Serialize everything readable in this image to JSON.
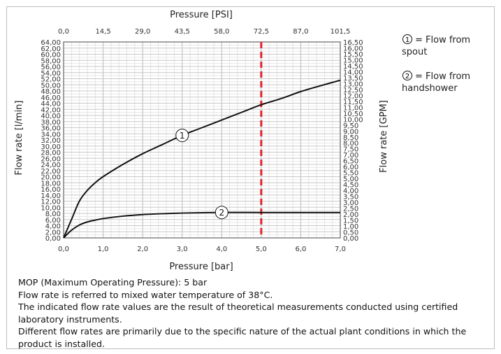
{
  "chart_data": {
    "type": "line",
    "title": "",
    "xlabel": "Pressure [bar]",
    "x2label": "Pressure [PSI]",
    "ylabel": "Flow rate [l/min]",
    "y2label": "Flow rate [GPM]",
    "xlim": [
      0,
      7
    ],
    "ylim": [
      0,
      64
    ],
    "y2lim": [
      0,
      16.5
    ],
    "x_ticks": [
      "0,0",
      "1,0",
      "2,0",
      "3,0",
      "4,0",
      "5,0",
      "6,0",
      "7,0"
    ],
    "x2_ticks": [
      "0,0",
      "14,5",
      "29,0",
      "43,5",
      "58,0",
      "72,5",
      "87,0",
      "101,5"
    ],
    "y_ticks": [
      "0,00",
      "2,00",
      "4,00",
      "6,00",
      "8,00",
      "10,00",
      "12,00",
      "14,00",
      "16,00",
      "18,00",
      "20,00",
      "22,00",
      "24,00",
      "26,00",
      "28,00",
      "30,00",
      "32,00",
      "34,00",
      "36,00",
      "38,00",
      "40,00",
      "42,00",
      "44,00",
      "46,00",
      "48,00",
      "50,00",
      "52,00",
      "54,00",
      "56,00",
      "58,00",
      "60,00",
      "62,00",
      "64,00"
    ],
    "y2_ticks": [
      "0,00",
      "0,50",
      "1,00",
      "1,50",
      "2,00",
      "2,50",
      "3,00",
      "3,50",
      "4,00",
      "4,50",
      "5,00",
      "5,50",
      "6,00",
      "6,50",
      "7,00",
      "7,50",
      "8,00",
      "8,50",
      "9,00",
      "9,50",
      "10,00",
      "10,50",
      "11,00",
      "11,50",
      "12,00",
      "12,50",
      "13,00",
      "13,50",
      "14,00",
      "14,50",
      "15,00",
      "15,50",
      "16,00",
      "16,50"
    ],
    "grid": true,
    "reference_line": {
      "x": 5,
      "color": "#e0242a",
      "style": "dashed"
    },
    "series": [
      {
        "label": "1",
        "color": "#111111",
        "x": [
          0,
          0.2,
          0.4,
          0.6,
          0.8,
          1.0,
          1.5,
          2.0,
          2.5,
          3.0,
          3.5,
          4.0,
          4.5,
          5.0,
          5.5,
          6.0,
          6.5,
          7.0
        ],
        "y": [
          0,
          6,
          12,
          15.5,
          18,
          20,
          24,
          27.5,
          30.5,
          33.5,
          36,
          38.5,
          41,
          43.5,
          45.5,
          47.8,
          49.7,
          51.5
        ],
        "marker_at_x": 3.0
      },
      {
        "label": "2",
        "color": "#111111",
        "x": [
          0,
          0.2,
          0.4,
          0.6,
          0.8,
          1.0,
          1.5,
          2.0,
          2.5,
          3.0,
          4.0,
          5.0,
          6.0,
          7.0
        ],
        "y": [
          0,
          2.5,
          4.2,
          5.2,
          5.8,
          6.3,
          7.1,
          7.6,
          7.9,
          8.1,
          8.3,
          8.3,
          8.3,
          8.3
        ],
        "marker_at_x": 4.0
      }
    ]
  },
  "legend": [
    {
      "num": "1",
      "line1": "= Flow from",
      "line2": "spout"
    },
    {
      "num": "2",
      "line1": "= Flow from",
      "line2": "handshower"
    }
  ],
  "notes": [
    "MOP (Maximum Operating Pressure): 5 bar",
    "Flow rate is referred to mixed water temperature of 38°C.",
    "The indicated flow rate values are the result of theoretical measurements conducted using certified laboratory instruments.",
    "Different flow rates are primarily due to the specific nature of the actual plant conditions in which the product is installed."
  ]
}
